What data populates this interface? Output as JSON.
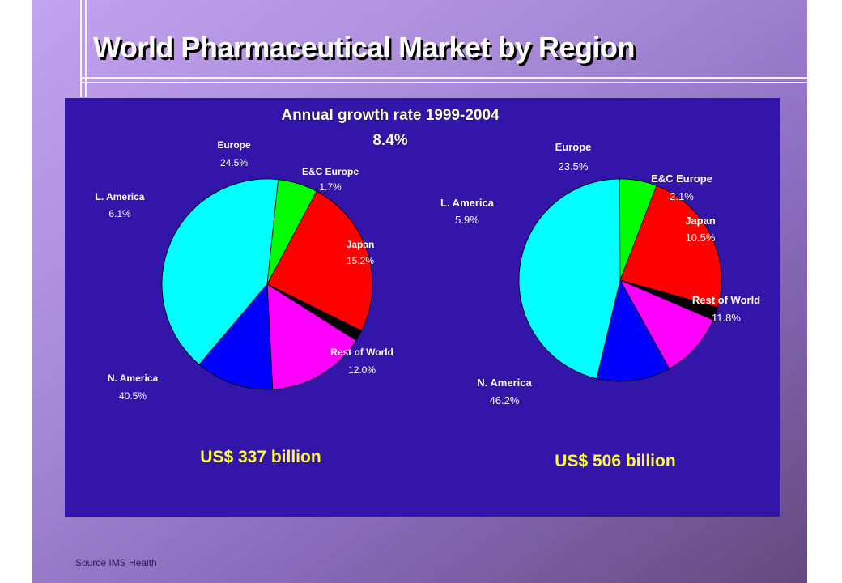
{
  "page": {
    "title": "World Pharmaceutical Market by Region",
    "source": "Source IMS Health",
    "growth_heading": "Annual growth rate 1999-2004",
    "growth_value": "8.4%"
  },
  "colors": {
    "panel_bg": "#3315aa",
    "title_text": "#ffffff",
    "label_text": "#ffffff",
    "total_text": "#ffff33",
    "slice_outline": "#000000",
    "europe": "#ff0000",
    "ec_europe": "#000000",
    "japan": "#ff00ff",
    "rest_of_world": "#0000ff",
    "n_america": "#00ffff",
    "l_america": "#00ff00"
  },
  "chart_data": [
    {
      "type": "pie",
      "total_label": "US$ 337 billion",
      "slices": [
        {
          "label": "Europe",
          "value": 24.5,
          "value_label": "24.5%",
          "color": "#ff0000"
        },
        {
          "label": "E&C Europe",
          "value": 1.7,
          "value_label": "1.7%",
          "color": "#000000"
        },
        {
          "label": "Japan",
          "value": 15.2,
          "value_label": "15.2%",
          "color": "#ff00ff"
        },
        {
          "label": "Rest of World",
          "value": 12.0,
          "value_label": "12.0%",
          "color": "#0000ff"
        },
        {
          "label": "N. America",
          "value": 40.5,
          "value_label": "40.5%",
          "color": "#00ffff"
        },
        {
          "label": "L. America",
          "value": 6.1,
          "value_label": "6.1%",
          "color": "#00ff00"
        }
      ]
    },
    {
      "type": "pie",
      "total_label": "US$ 506 billion",
      "slices": [
        {
          "label": "Europe",
          "value": 23.5,
          "value_label": "23.5%",
          "color": "#ff0000"
        },
        {
          "label": "E&C Europe",
          "value": 2.1,
          "value_label": "2.1%",
          "color": "#000000"
        },
        {
          "label": "Japan",
          "value": 10.5,
          "value_label": "10.5%",
          "color": "#ff00ff"
        },
        {
          "label": "Rest of World",
          "value": 11.8,
          "value_label": "11.8%",
          "color": "#0000ff"
        },
        {
          "label": "N. America",
          "value": 46.2,
          "value_label": "46.2%",
          "color": "#00ffff"
        },
        {
          "label": "L. America",
          "value": 5.9,
          "value_label": "5.9%",
          "color": "#00ff00"
        }
      ]
    }
  ]
}
